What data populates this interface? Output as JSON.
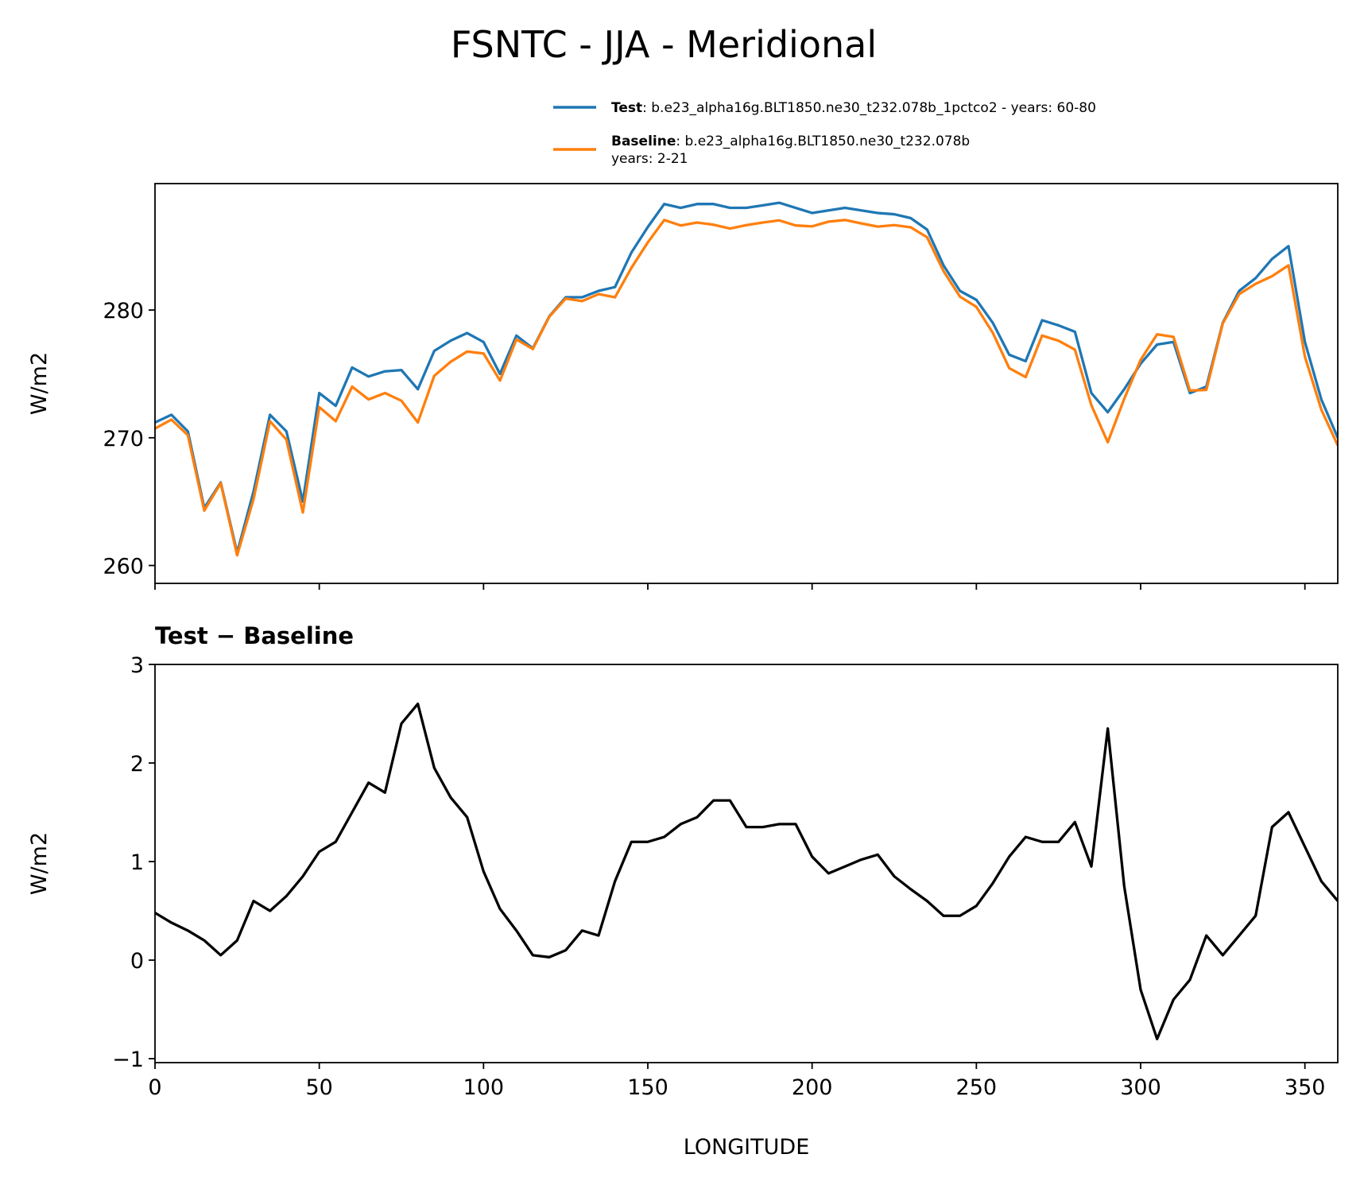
{
  "title": "FSNTC - JJA - Meridional",
  "chart_data": [
    {
      "type": "line",
      "ylabel": "W/m2",
      "x": [
        0,
        5,
        10,
        15,
        20,
        25,
        30,
        35,
        40,
        45,
        50,
        55,
        60,
        65,
        70,
        75,
        80,
        85,
        90,
        95,
        100,
        105,
        110,
        115,
        120,
        125,
        130,
        135,
        140,
        145,
        150,
        155,
        160,
        165,
        170,
        175,
        180,
        185,
        190,
        195,
        200,
        205,
        210,
        215,
        220,
        225,
        230,
        235,
        240,
        245,
        250,
        255,
        260,
        265,
        270,
        275,
        280,
        285,
        290,
        295,
        300,
        305,
        310,
        315,
        320,
        325,
        330,
        335,
        340,
        345,
        350,
        355,
        360
      ],
      "series": [
        {
          "name": "Test",
          "description": [
            ": b.e23_alpha16g.BLT1850.ne30_t232.078b_1pctco2 - years: 60-80"
          ],
          "color": "#1f77b4",
          "values": [
            271.2,
            271.8,
            270.5,
            264.5,
            266.5,
            261.0,
            265.8,
            271.8,
            270.5,
            265.0,
            273.5,
            272.5,
            275.5,
            274.8,
            275.2,
            275.3,
            273.8,
            276.8,
            277.6,
            278.2,
            277.5,
            275.0,
            278.0,
            277.0,
            279.5,
            281.0,
            281.0,
            281.5,
            281.8,
            284.5,
            286.5,
            288.3,
            288.0,
            288.3,
            288.3,
            288.0,
            288.0,
            288.2,
            288.4,
            288.0,
            287.6,
            287.8,
            288.0,
            287.8,
            287.6,
            287.5,
            287.2,
            286.3,
            283.5,
            281.5,
            280.8,
            279.0,
            276.5,
            276.0,
            279.2,
            278.8,
            278.3,
            273.5,
            272.0,
            273.8,
            275.8,
            277.3,
            277.5,
            273.5,
            274.0,
            279.0,
            281.5,
            282.5,
            284.0,
            285.0,
            277.5,
            273.0,
            270.0
          ]
        },
        {
          "name": "Baseline",
          "description": [
            ": b.e23_alpha16g.BLT1850.ne30_t232.078b",
            "years: 2-21"
          ],
          "color": "#ff7f0e",
          "values": [
            270.72,
            271.42,
            270.2,
            264.3,
            266.45,
            260.8,
            265.2,
            271.3,
            269.85,
            264.15,
            272.4,
            271.3,
            274.0,
            273.0,
            273.5,
            272.9,
            271.2,
            274.85,
            275.95,
            276.75,
            276.6,
            274.48,
            277.7,
            276.95,
            279.47,
            280.9,
            280.7,
            281.25,
            281.0,
            283.3,
            285.3,
            287.05,
            286.62,
            286.85,
            286.68,
            286.38,
            286.65,
            286.85,
            287.02,
            286.62,
            286.55,
            286.92,
            287.05,
            286.78,
            286.53,
            286.65,
            286.48,
            285.7,
            283.05,
            281.05,
            280.25,
            278.22,
            275.45,
            274.75,
            278.0,
            277.6,
            276.9,
            272.55,
            269.65,
            273.05,
            276.1,
            278.1,
            277.9,
            273.7,
            273.75,
            278.95,
            281.25,
            282.05,
            282.65,
            283.5,
            276.35,
            272.2,
            269.4
          ]
        }
      ],
      "xlim": [
        0,
        360
      ],
      "xticks": [
        0,
        50,
        100,
        150,
        200,
        250,
        300,
        350
      ],
      "xtick_labels": false,
      "ylim": [
        258.6,
        289.9
      ],
      "yticks": [
        260,
        270,
        280
      ],
      "legend": "upper right outside"
    },
    {
      "type": "line",
      "title": "Test − Baseline",
      "xlabel": "LONGITUDE",
      "ylabel": "W/m2",
      "x": [
        0,
        5,
        10,
        15,
        20,
        25,
        30,
        35,
        40,
        45,
        50,
        55,
        60,
        65,
        70,
        75,
        80,
        85,
        90,
        95,
        100,
        105,
        110,
        115,
        120,
        125,
        130,
        135,
        140,
        145,
        150,
        155,
        160,
        165,
        170,
        175,
        180,
        185,
        190,
        195,
        200,
        205,
        210,
        215,
        220,
        225,
        230,
        235,
        240,
        245,
        250,
        255,
        260,
        265,
        270,
        275,
        280,
        285,
        290,
        295,
        300,
        305,
        310,
        315,
        320,
        325,
        330,
        335,
        340,
        345,
        350,
        355,
        360
      ],
      "series": [
        {
          "color": "#000000",
          "values": [
            0.48,
            0.38,
            0.3,
            0.2,
            0.05,
            0.2,
            0.6,
            0.5,
            0.65,
            0.85,
            1.1,
            1.2,
            1.5,
            1.8,
            1.7,
            2.4,
            2.6,
            1.95,
            1.65,
            1.45,
            0.9,
            0.52,
            0.3,
            0.05,
            0.03,
            0.1,
            0.3,
            0.25,
            0.8,
            1.2,
            1.2,
            1.25,
            1.38,
            1.45,
            1.62,
            1.62,
            1.35,
            1.35,
            1.38,
            1.38,
            1.05,
            0.88,
            0.95,
            1.02,
            1.07,
            0.85,
            0.72,
            0.6,
            0.45,
            0.45,
            0.55,
            0.78,
            1.05,
            1.25,
            1.2,
            1.2,
            1.4,
            0.95,
            2.35,
            0.75,
            -0.3,
            -0.8,
            -0.4,
            -0.2,
            0.25,
            0.05,
            0.25,
            0.45,
            1.35,
            1.5,
            1.15,
            0.8,
            0.6
          ]
        }
      ],
      "xlim": [
        0,
        360
      ],
      "xticks": [
        0,
        50,
        100,
        150,
        200,
        250,
        300,
        350
      ],
      "xtick_labels": true,
      "ylim": [
        -1.04,
        3
      ],
      "yticks": [
        {
          "value": -1,
          "label": "−1"
        },
        0,
        1,
        2,
        3
      ]
    }
  ]
}
